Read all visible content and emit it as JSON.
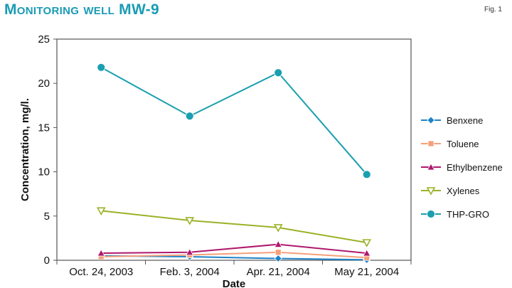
{
  "header": {
    "title": "Monitoring well MW-9",
    "fig": "Fig. 1"
  },
  "chart_data": {
    "type": "line",
    "title": "Monitoring well MW-9",
    "xlabel": "Date",
    "ylabel": "Concentration, mg/l.",
    "categories": [
      "Oct. 24, 2003",
      "Feb. 3, 2004",
      "Apr. 21, 2004",
      "May 21, 2004"
    ],
    "ylim": [
      0,
      25
    ],
    "yticks": [
      0,
      5,
      10,
      15,
      20,
      25
    ],
    "grid": false,
    "legend_position": "right",
    "series": [
      {
        "name": "Benxene",
        "values": [
          0.5,
          0.4,
          0.2,
          0.05
        ],
        "color": "#1e82c8",
        "marker": "diamond"
      },
      {
        "name": "Toluene",
        "values": [
          0.4,
          0.6,
          0.9,
          0.3
        ],
        "color": "#f4a07a",
        "marker": "square"
      },
      {
        "name": "Ethylbenzene",
        "values": [
          0.8,
          0.9,
          1.8,
          0.8
        ],
        "color": "#b0186e",
        "marker": "triangle-up"
      },
      {
        "name": "Xylenes",
        "values": [
          5.6,
          4.5,
          3.7,
          2.0
        ],
        "color": "#9ab227",
        "marker": "triangle-down"
      },
      {
        "name": "THP-GRO",
        "values": [
          21.8,
          16.3,
          21.2,
          9.7
        ],
        "color": "#1a9fb0",
        "marker": "circle"
      }
    ]
  }
}
